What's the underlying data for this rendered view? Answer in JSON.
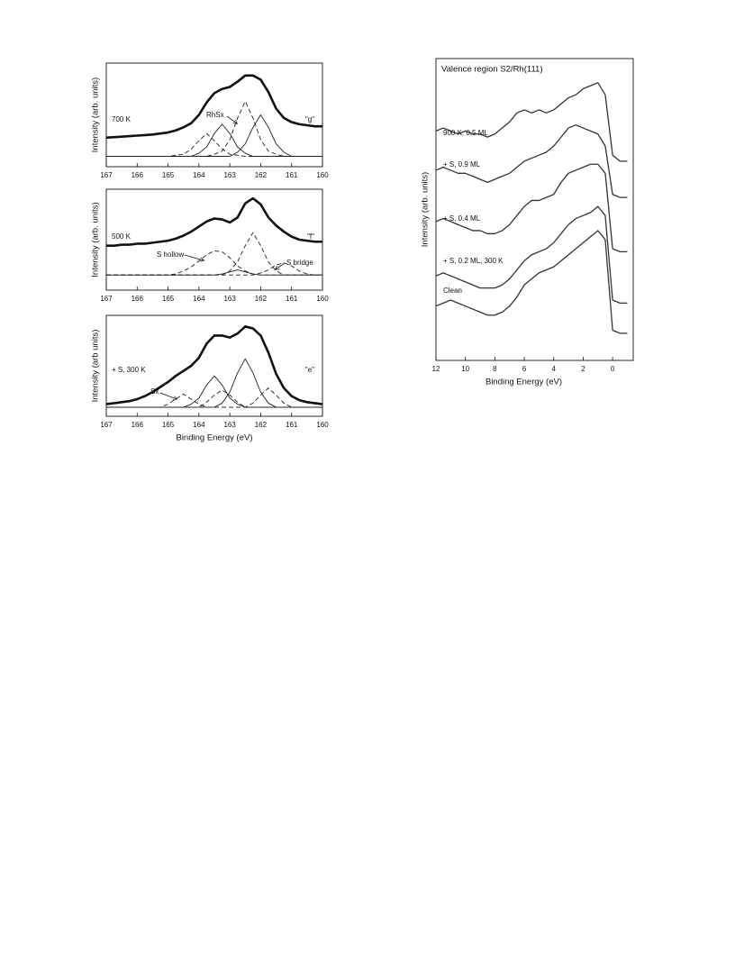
{
  "chart_data": [
    {
      "type": "line",
      "ylabel": "Intensity (arb. units)",
      "annotations": [
        "700 K",
        "RhSx",
        "\"g\""
      ],
      "xlim": [
        167,
        160
      ],
      "xticks": [
        167,
        166,
        165,
        164,
        163,
        162,
        161,
        160
      ],
      "ylim": [
        0,
        100
      ],
      "x": [
        167,
        166.75,
        166.5,
        166.25,
        166,
        165.75,
        165.5,
        165.25,
        165,
        164.75,
        164.5,
        164.25,
        164,
        163.75,
        163.5,
        163.25,
        163,
        162.75,
        162.5,
        162.25,
        162,
        161.75,
        161.5,
        161.25,
        161,
        160.75,
        160.5,
        160.25,
        160
      ],
      "series": [
        {
          "color": "#111111",
          "linestyle": "solid",
          "linewidth": 2.6,
          "values": [
            28,
            28.5,
            29,
            29.5,
            30,
            30.5,
            31,
            32,
            33,
            35,
            38,
            42,
            50,
            62,
            71,
            75,
            77,
            82,
            88,
            88,
            84,
            72,
            56,
            47,
            43,
            41,
            40,
            39,
            39
          ]
        },
        {
          "color": "#222222",
          "linestyle": "dashed",
          "linewidth": 0.9,
          "values": [
            10,
            10,
            10,
            10,
            10,
            10,
            10,
            10,
            10,
            11,
            12,
            17,
            25,
            32,
            25,
            17,
            12,
            11,
            10,
            10,
            10,
            10,
            10,
            10,
            10,
            10,
            10,
            10,
            10
          ]
        },
        {
          "color": "#222222",
          "linestyle": "solid",
          "linewidth": 0.9,
          "values": [
            10,
            10,
            10,
            10,
            10,
            10,
            10,
            10,
            10,
            10,
            10,
            10,
            13,
            19,
            32,
            41,
            32,
            19,
            13,
            10,
            10,
            10,
            10,
            10,
            10,
            10,
            10,
            10,
            10
          ]
        },
        {
          "color": "#222222",
          "linestyle": "dashed",
          "linewidth": 0.9,
          "values": [
            10,
            10,
            10,
            10,
            10,
            10,
            10,
            10,
            10,
            10,
            10,
            10,
            10,
            10,
            12,
            15,
            26,
            47,
            63,
            47,
            26,
            15,
            12,
            10,
            10,
            10,
            10,
            10,
            10
          ]
        },
        {
          "color": "#222222",
          "linestyle": "solid",
          "linewidth": 0.9,
          "values": [
            10,
            10,
            10,
            10,
            10,
            10,
            10,
            10,
            10,
            10,
            10,
            10,
            10,
            10,
            10,
            10,
            10,
            14,
            22,
            38,
            50,
            38,
            22,
            14,
            10,
            10,
            10,
            10,
            10
          ]
        }
      ]
    },
    {
      "type": "line",
      "ylabel": "Intensity (arb. units)",
      "annotations": [
        "500 K",
        "\"f\"",
        "S hollow",
        "S bridge"
      ],
      "xlim": [
        167,
        160
      ],
      "xticks": [
        167,
        166,
        165,
        164,
        163,
        162,
        161,
        160
      ],
      "ylim": [
        0,
        100
      ],
      "x": [
        167,
        166.75,
        166.5,
        166.25,
        166,
        165.75,
        165.5,
        165.25,
        165,
        164.75,
        164.5,
        164.25,
        164,
        163.75,
        163.5,
        163.25,
        163,
        162.75,
        162.5,
        162.25,
        162,
        161.75,
        161.5,
        161.25,
        161,
        160.75,
        160.5,
        160.25,
        160
      ],
      "series": [
        {
          "color": "#111111",
          "linestyle": "solid",
          "linewidth": 2.6,
          "values": [
            44,
            44,
            45,
            45,
            46,
            46,
            47,
            48,
            49,
            51,
            54,
            58,
            63,
            68,
            71,
            70,
            67,
            72,
            86,
            91,
            85,
            72,
            64,
            58,
            53,
            50,
            49,
            48,
            48
          ]
        },
        {
          "color": "#222222",
          "linestyle": "dashed",
          "linewidth": 0.9,
          "values": [
            15,
            15,
            15,
            15,
            15,
            15,
            15,
            15,
            15,
            16,
            19,
            23,
            29,
            35,
            39,
            38,
            32,
            24,
            19,
            16,
            15,
            15,
            15,
            15,
            15,
            15,
            15,
            15,
            15
          ]
        },
        {
          "color": "#222222",
          "linestyle": "dashed",
          "linewidth": 0.9,
          "values": [
            15,
            15,
            15,
            15,
            15,
            15,
            15,
            15,
            15,
            15,
            15,
            15,
            15,
            15,
            15,
            15,
            19,
            28,
            44,
            57,
            44,
            28,
            19,
            15,
            15,
            15,
            15,
            15,
            15
          ]
        },
        {
          "color": "#222222",
          "linestyle": "solid",
          "linewidth": 0.9,
          "values": [
            15,
            15,
            15,
            15,
            15,
            15,
            15,
            15,
            15,
            15,
            15,
            15,
            15,
            15,
            15,
            16,
            18,
            20,
            18,
            16,
            15,
            15,
            15,
            15,
            15,
            15,
            15,
            15,
            15
          ]
        },
        {
          "color": "#222222",
          "linestyle": "dashed",
          "linewidth": 0.9,
          "values": [
            15,
            15,
            15,
            15,
            15,
            15,
            15,
            15,
            15,
            15,
            15,
            15,
            15,
            15,
            15,
            15,
            15,
            15,
            15,
            15,
            17,
            20,
            25,
            27,
            24,
            19,
            16,
            15,
            15
          ]
        }
      ]
    },
    {
      "type": "line",
      "ylabel": "Intensity (arb units)",
      "xlabel": "Binding Energy (eV)",
      "annotations": [
        "+ S, 300 K",
        "\"e\"",
        "Sx"
      ],
      "xlim": [
        167,
        160
      ],
      "xticks": [
        167,
        166,
        165,
        164,
        163,
        162,
        161,
        160
      ],
      "ylim": [
        0,
        100
      ],
      "x": [
        167,
        166.75,
        166.5,
        166.25,
        166,
        165.75,
        165.5,
        165.25,
        165,
        164.75,
        164.5,
        164.25,
        164,
        163.75,
        163.5,
        163.25,
        163,
        162.75,
        162.5,
        162.25,
        162,
        161.75,
        161.5,
        161.25,
        161,
        160.75,
        160.5,
        160.25,
        160
      ],
      "series": [
        {
          "color": "#111111",
          "linestyle": "solid",
          "linewidth": 2.6,
          "values": [
            12,
            13,
            14,
            15,
            17,
            20,
            24,
            29,
            34,
            40,
            45,
            50,
            58,
            72,
            80,
            80,
            78,
            82,
            89,
            87,
            80,
            63,
            42,
            28,
            20,
            16,
            14,
            13,
            12
          ]
        },
        {
          "color": "#222222",
          "linestyle": "dashed",
          "linewidth": 0.9,
          "values": [
            9,
            9,
            9,
            9,
            9,
            9,
            9,
            9,
            12,
            17,
            22,
            17,
            12,
            9,
            9,
            9,
            9,
            9,
            9,
            9,
            9,
            9,
            9,
            9,
            9,
            9,
            9,
            9,
            9
          ]
        },
        {
          "color": "#222222",
          "linestyle": "solid",
          "linewidth": 0.9,
          "values": [
            9,
            9,
            9,
            9,
            9,
            9,
            9,
            9,
            9,
            9,
            9,
            12,
            18,
            31,
            40,
            31,
            18,
            12,
            9,
            9,
            9,
            9,
            9,
            9,
            9,
            9,
            9,
            9,
            9
          ]
        },
        {
          "color": "#222222",
          "linestyle": "dashed",
          "linewidth": 0.9,
          "values": [
            9,
            9,
            9,
            9,
            9,
            9,
            9,
            9,
            9,
            9,
            9,
            9,
            9,
            14,
            21,
            26,
            21,
            14,
            9,
            9,
            9,
            9,
            9,
            9,
            9,
            9,
            9,
            9,
            9
          ]
        },
        {
          "color": "#222222",
          "linestyle": "solid",
          "linewidth": 0.9,
          "values": [
            9,
            9,
            9,
            9,
            9,
            9,
            9,
            9,
            9,
            9,
            9,
            9,
            9,
            9,
            9,
            13,
            24,
            43,
            57,
            43,
            24,
            13,
            9,
            9,
            9,
            9,
            9,
            9,
            9
          ]
        },
        {
          "color": "#222222",
          "linestyle": "dashed",
          "linewidth": 0.9,
          "values": [
            9,
            9,
            9,
            9,
            9,
            9,
            9,
            9,
            9,
            9,
            9,
            9,
            9,
            9,
            9,
            9,
            9,
            9,
            9,
            13,
            21,
            28,
            21,
            13,
            9,
            9,
            9,
            9,
            9
          ]
        }
      ]
    },
    {
      "type": "line",
      "title": "Valence region  S2/Rh(111)",
      "ylabel": "Intensity (arb. units)",
      "xlabel": "Binding Energy (eV)",
      "annotations": [
        "900 K, 0.5 ML",
        "+ S, 0.9 ML",
        "+ S, 0.4 ML",
        "+ S, 0.2 ML, 300 K",
        "Clean"
      ],
      "xlim": [
        12,
        -1.4
      ],
      "xticks": [
        12,
        10,
        8,
        6,
        4,
        2,
        0
      ],
      "ylim": [
        0,
        100
      ],
      "x": [
        12,
        11.5,
        11,
        10.5,
        10,
        9.5,
        9,
        8.5,
        8,
        7.5,
        7,
        6.5,
        6,
        5.5,
        5,
        4.5,
        4,
        3.5,
        3,
        2.5,
        2,
        1.5,
        1,
        0.5,
        0,
        -0.5,
        -1
      ],
      "series": [
        {
          "color": "#333333",
          "linestyle": "solid",
          "linewidth": 1.3,
          "values": [
            76,
            77,
            76,
            75,
            76,
            75,
            75,
            74,
            75,
            77,
            79,
            82,
            83,
            82,
            83,
            82,
            83,
            85,
            87,
            88,
            90,
            91,
            92,
            88,
            68,
            66,
            66
          ]
        },
        {
          "color": "#333333",
          "linestyle": "solid",
          "linewidth": 1.3,
          "values": [
            63,
            64,
            63,
            62,
            62,
            61,
            60,
            59,
            60,
            61,
            62,
            64,
            66,
            67,
            68,
            69,
            71,
            74,
            77,
            78,
            77,
            76,
            75,
            71,
            55,
            54,
            54
          ]
        },
        {
          "color": "#333333",
          "linestyle": "solid",
          "linewidth": 1.3,
          "values": [
            46,
            47,
            46,
            45,
            44,
            43,
            43,
            42,
            42,
            43,
            45,
            48,
            51,
            53,
            53,
            54,
            55,
            59,
            62,
            63,
            64,
            65,
            65,
            62,
            37,
            36,
            36
          ]
        },
        {
          "color": "#333333",
          "linestyle": "solid",
          "linewidth": 1.3,
          "values": [
            28,
            29,
            28,
            27,
            26,
            25,
            24,
            24,
            24,
            25,
            27,
            30,
            33,
            35,
            36,
            37,
            39,
            42,
            45,
            47,
            48,
            49,
            51,
            48,
            20,
            19,
            19
          ]
        },
        {
          "color": "#333333",
          "linestyle": "solid",
          "linewidth": 1.3,
          "values": [
            18,
            19,
            20,
            19,
            18,
            17,
            16,
            15,
            15,
            16,
            18,
            21,
            25,
            27,
            29,
            30,
            31,
            33,
            35,
            37,
            39,
            41,
            43,
            40,
            10,
            9,
            9
          ]
        }
      ]
    }
  ]
}
